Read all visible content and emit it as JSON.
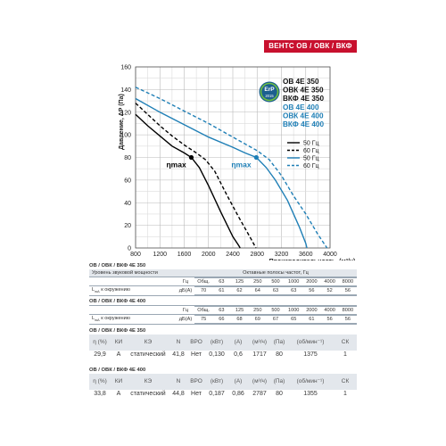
{
  "header": {
    "badge_label": "ВЕНТС ОВ / ОВК / ВКФ"
  },
  "models": {
    "group_350": [
      "ОВ 4Е 350",
      "ОВК 4Е 350",
      "ВКФ 4Е 350"
    ],
    "group_400": [
      "ОВ 4Е 400",
      "ОВК 4Е 400",
      "ВКФ 4Е 400"
    ],
    "erp_badge": [
      "ErP",
      "2015"
    ]
  },
  "chart_data": {
    "type": "line",
    "ylabel": "Давление, ΔP (Па)",
    "xlabel": "Производительность, (м³/ч)",
    "xlim": [
      800,
      4000
    ],
    "ylim": [
      0,
      160
    ],
    "x_ticks": [
      "800",
      "1200",
      "1600",
      "2000",
      "2400",
      "2800",
      "3200",
      "3600",
      "4000"
    ],
    "y_ticks": [
      "0",
      "20",
      "40",
      "60",
      "80",
      "100",
      "120",
      "140",
      "160"
    ],
    "grid": true,
    "legend": [
      "50 Гц",
      "60 Гц",
      "50 Гц",
      "60 Гц"
    ],
    "annotations": [
      "ηmax",
      "ηmax"
    ],
    "series": [
      {
        "name": "50 Гц",
        "color": "#000000",
        "style": "solid",
        "x": [
          800,
          1000,
          1200,
          1400,
          1600,
          1717,
          1850,
          2000,
          2200,
          2400,
          2500,
          2520
        ],
        "y": [
          118,
          108,
          99,
          90,
          84,
          80,
          71,
          55,
          32,
          10,
          2,
          0
        ]
      },
      {
        "name": "60 Гц",
        "color": "#000000",
        "style": "dashed",
        "x": [
          800,
          1000,
          1200,
          1400,
          1600,
          1800,
          1950,
          2100,
          2300,
          2500,
          2700,
          2780
        ],
        "y": [
          128,
          118,
          108,
          99,
          91,
          84,
          78,
          68,
          47,
          27,
          8,
          0
        ]
      },
      {
        "name": "50 Гц",
        "color": "#1f7fb6",
        "style": "solid",
        "x": [
          800,
          1200,
          1600,
          2000,
          2400,
          2600,
          2787,
          2950,
          3100,
          3300,
          3500,
          3600,
          3620
        ],
        "y": [
          132,
          120,
          109,
          98,
          89,
          84,
          80,
          71,
          60,
          42,
          18,
          4,
          0
        ]
      },
      {
        "name": "60 Гц",
        "color": "#1f7fb6",
        "style": "dashed",
        "x": [
          800,
          1200,
          1600,
          2000,
          2400,
          2800,
          3000,
          3200,
          3400,
          3600,
          3800,
          3950
        ],
        "y": [
          142,
          132,
          121,
          110,
          98,
          86,
          78,
          64,
          46,
          30,
          12,
          0
        ]
      }
    ]
  },
  "sound_tables": [
    {
      "title": "ОВ / ОВК / ВКФ 4Е 350",
      "level_label": "Уровень звуковой мощности",
      "bands_label": "Октавные полосы частот, Гц",
      "hz_label": "Гц",
      "row_label": "L",
      "row_label_sub": "wA",
      "row_label_rest": " к окружению",
      "unit": "дБ(A)",
      "headers": [
        "Общ.",
        "63",
        "125",
        "250",
        "500",
        "1000",
        "2000",
        "4000",
        "8000"
      ],
      "values": [
        "70",
        "61",
        "62",
        "64",
        "63",
        "63",
        "56",
        "52",
        "56"
      ]
    },
    {
      "title": "ОВ / ОВК / ВКФ 4Е 400",
      "level_label": "",
      "bands_label": "",
      "hz_label": "Гц",
      "row_label": "L",
      "row_label_sub": "wA",
      "row_label_rest": " к окружению",
      "unit": "дБ(A)",
      "headers": [
        "Общ.",
        "63",
        "125",
        "250",
        "500",
        "1000",
        "2000",
        "4000",
        "8000"
      ],
      "values": [
        "75",
        "66",
        "68",
        "69",
        "67",
        "65",
        "61",
        "56",
        "56"
      ]
    }
  ],
  "spec_tables": [
    {
      "title": "ОВ / ОВК / ВКФ 4Е 350",
      "headers": [
        "η (%)",
        "КИ",
        "КЭ",
        "N",
        "ВРО",
        "(кВт)",
        "(А)",
        "(м³/ч)",
        "(Па)",
        "(об/мин⁻¹)",
        "СК"
      ],
      "values": [
        "29,9",
        "A",
        "статический",
        "41,8",
        "Нет",
        "0,130",
        "0,6",
        "1717",
        "80",
        "1375",
        "1"
      ]
    },
    {
      "title": "ОВ / ОВК / ВКФ 4Е 400",
      "headers": [
        "η (%)",
        "КИ",
        "КЭ",
        "N",
        "ВРО",
        "(кВт)",
        "(А)",
        "(м³/ч)",
        "(Па)",
        "(об/мин⁻¹)",
        "СК"
      ],
      "values": [
        "33,8",
        "A",
        "статический",
        "44,8",
        "Нет",
        "0,187",
        "0,86",
        "2787",
        "80",
        "1355",
        "1"
      ]
    }
  ]
}
